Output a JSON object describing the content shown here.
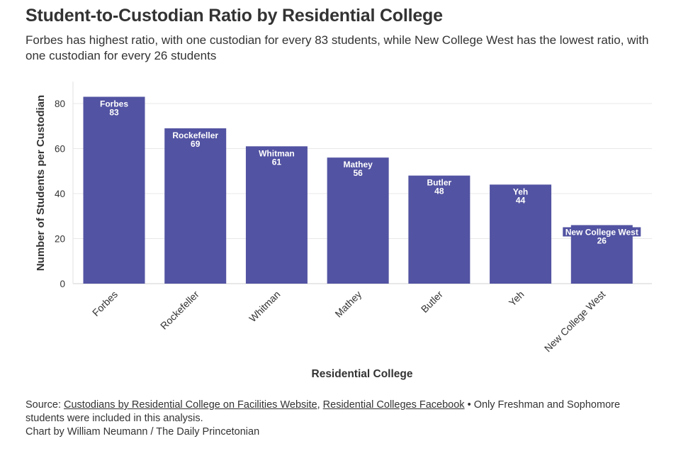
{
  "header": {
    "title": "Student-to-Custodian Ratio by Residential College",
    "subtitle": "Forbes has highest ratio, with one custodian for every 83 students, while New College West has the lowest ratio, with one custodian for every 26 students"
  },
  "colors": {
    "bar": "#5253a2",
    "bar_label": "#ffffff",
    "grid": "#e8e8e8",
    "axis_text": "#333333"
  },
  "chart_data": {
    "type": "bar",
    "title": "Student-to-Custodian Ratio by Residential College",
    "xlabel": "Residential College",
    "ylabel": "Number of Students per Custodian",
    "categories": [
      "Forbes",
      "Rockefeller",
      "Whitman",
      "Mathey",
      "Butler",
      "Yeh",
      "New College West"
    ],
    "values": [
      83,
      69,
      61,
      56,
      48,
      44,
      26
    ],
    "ylim": [
      0,
      90
    ],
    "yticks": [
      0,
      20,
      40,
      60,
      80
    ],
    "grid": true,
    "data_labels": true
  },
  "footer": {
    "source_prefix": "Source: ",
    "source_link_1": "Custodians by Residential College on Facilities Website",
    "separator": ", ",
    "source_link_2": "Residential Colleges Facebook",
    "note": " • Only Freshman and Sophomore students were included in this analysis.",
    "credit": "Chart by William Neumann / The Daily Princetonian"
  }
}
